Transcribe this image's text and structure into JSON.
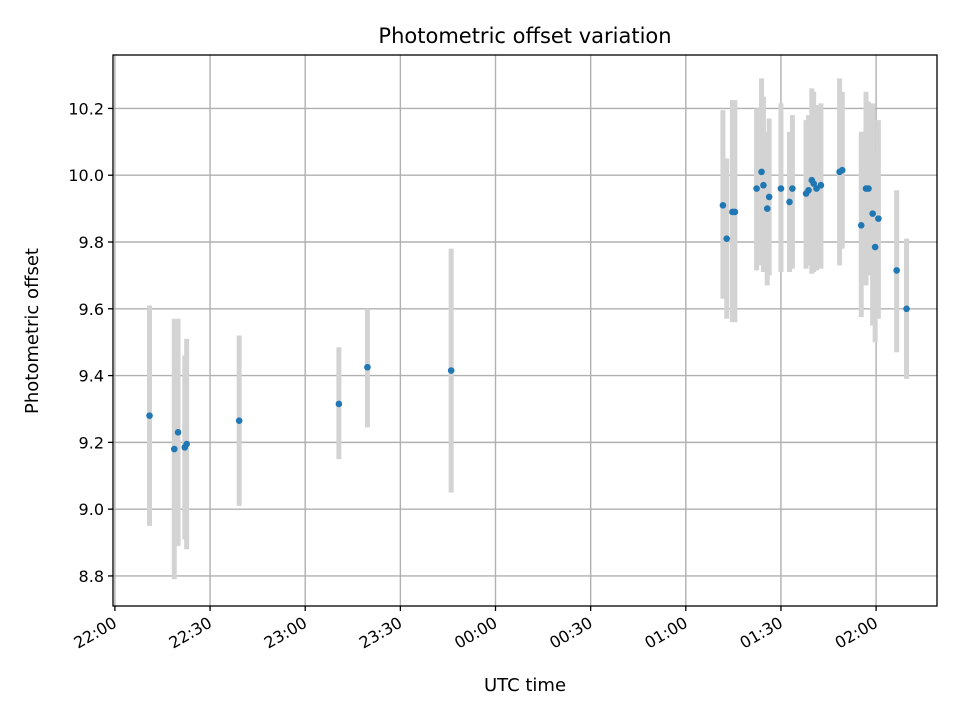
{
  "chart_data": {
    "type": "scatter",
    "title": "Photometric offset variation",
    "xlabel": "UTC time",
    "ylabel": "Photometric offset",
    "x_unit": "UTC clock time (hours after 22:00)",
    "xlim": [
      -0.01,
      4.32
    ],
    "ylim": [
      8.71,
      10.36
    ],
    "grid": true,
    "x_ticks": [
      {
        "value": 0.0,
        "label": "22:00"
      },
      {
        "value": 0.5,
        "label": "22:30"
      },
      {
        "value": 1.0,
        "label": "23:00"
      },
      {
        "value": 1.5,
        "label": "23:30"
      },
      {
        "value": 2.0,
        "label": "00:00"
      },
      {
        "value": 2.5,
        "label": "00:30"
      },
      {
        "value": 3.0,
        "label": "01:00"
      },
      {
        "value": 3.5,
        "label": "01:30"
      },
      {
        "value": 4.0,
        "label": "02:00"
      }
    ],
    "y_ticks": [
      {
        "value": 8.8,
        "label": "8.8"
      },
      {
        "value": 9.0,
        "label": "9.0"
      },
      {
        "value": 9.2,
        "label": "9.2"
      },
      {
        "value": 9.4,
        "label": "9.4"
      },
      {
        "value": 9.6,
        "label": "9.6"
      },
      {
        "value": 9.8,
        "label": "9.8"
      },
      {
        "value": 10.0,
        "label": "10.0"
      },
      {
        "value": 10.2,
        "label": "10.2"
      }
    ],
    "series": [
      {
        "marker_color": "#1f77b4",
        "errorbar_color": "#d3d3d3",
        "points": [
          {
            "x": 0.182,
            "y": 9.28,
            "lo": 8.95,
            "hi": 9.61
          },
          {
            "x": 0.312,
            "y": 9.18,
            "lo": 8.79,
            "hi": 9.57
          },
          {
            "x": 0.332,
            "y": 9.23,
            "lo": 8.89,
            "hi": 9.57
          },
          {
            "x": 0.367,
            "y": 9.185,
            "lo": 8.91,
            "hi": 9.46
          },
          {
            "x": 0.377,
            "y": 9.195,
            "lo": 8.88,
            "hi": 9.51
          },
          {
            "x": 0.653,
            "y": 9.265,
            "lo": 9.01,
            "hi": 9.52
          },
          {
            "x": 1.177,
            "y": 9.315,
            "lo": 9.15,
            "hi": 9.485
          },
          {
            "x": 1.327,
            "y": 9.425,
            "lo": 9.245,
            "hi": 9.6
          },
          {
            "x": 1.767,
            "y": 9.415,
            "lo": 9.05,
            "hi": 9.78
          },
          {
            "x": 3.195,
            "y": 9.91,
            "lo": 9.63,
            "hi": 10.195
          },
          {
            "x": 3.215,
            "y": 9.81,
            "lo": 9.57,
            "hi": 10.05
          },
          {
            "x": 3.245,
            "y": 9.89,
            "lo": 9.56,
            "hi": 10.225
          },
          {
            "x": 3.258,
            "y": 9.89,
            "lo": 9.56,
            "hi": 10.225
          },
          {
            "x": 3.372,
            "y": 9.96,
            "lo": 9.715,
            "hi": 10.2
          },
          {
            "x": 3.398,
            "y": 10.01,
            "lo": 9.73,
            "hi": 10.29
          },
          {
            "x": 3.408,
            "y": 9.97,
            "lo": 9.71,
            "hi": 10.235
          },
          {
            "x": 3.428,
            "y": 9.9,
            "lo": 9.67,
            "hi": 10.13
          },
          {
            "x": 3.438,
            "y": 9.935,
            "lo": 9.7,
            "hi": 10.17
          },
          {
            "x": 3.5,
            "y": 9.96,
            "lo": 9.71,
            "hi": 10.215
          },
          {
            "x": 3.545,
            "y": 9.92,
            "lo": 9.71,
            "hi": 10.13
          },
          {
            "x": 3.56,
            "y": 9.96,
            "lo": 9.72,
            "hi": 10.18
          },
          {
            "x": 3.632,
            "y": 9.945,
            "lo": 9.72,
            "hi": 10.165
          },
          {
            "x": 3.645,
            "y": 9.955,
            "lo": 9.73,
            "hi": 10.18
          },
          {
            "x": 3.662,
            "y": 9.985,
            "lo": 9.705,
            "hi": 10.26
          },
          {
            "x": 3.672,
            "y": 9.975,
            "lo": 9.71,
            "hi": 10.25
          },
          {
            "x": 3.687,
            "y": 9.96,
            "lo": 9.715,
            "hi": 10.21
          },
          {
            "x": 3.71,
            "y": 9.97,
            "lo": 9.72,
            "hi": 10.215
          },
          {
            "x": 3.808,
            "y": 10.01,
            "lo": 9.73,
            "hi": 10.29
          },
          {
            "x": 3.822,
            "y": 10.015,
            "lo": 9.78,
            "hi": 10.25
          },
          {
            "x": 3.922,
            "y": 9.85,
            "lo": 9.575,
            "hi": 10.13
          },
          {
            "x": 3.947,
            "y": 9.96,
            "lo": 9.67,
            "hi": 10.25
          },
          {
            "x": 3.96,
            "y": 9.96,
            "lo": 9.7,
            "hi": 10.22
          },
          {
            "x": 3.982,
            "y": 9.885,
            "lo": 9.55,
            "hi": 10.215
          },
          {
            "x": 3.995,
            "y": 9.785,
            "lo": 9.5,
            "hi": 10.07
          },
          {
            "x": 4.012,
            "y": 9.87,
            "lo": 9.57,
            "hi": 10.165
          },
          {
            "x": 4.108,
            "y": 9.715,
            "lo": 9.47,
            "hi": 9.955
          },
          {
            "x": 4.16,
            "y": 9.6,
            "lo": 9.39,
            "hi": 9.81
          }
        ]
      }
    ]
  }
}
